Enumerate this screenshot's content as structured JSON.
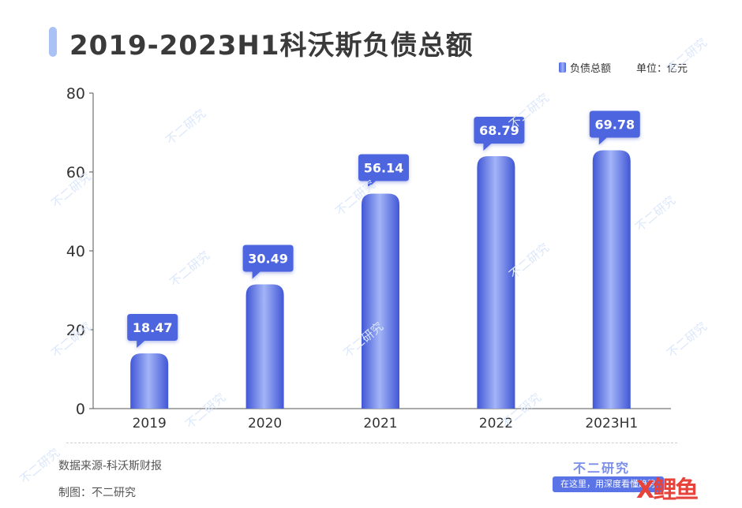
{
  "title": "2019-2023H1科沃斯负债总额",
  "legend": "负债总额",
  "unit": "单位：亿元",
  "source": "数据来源-科沃斯财报",
  "maker": "制图：不二研究",
  "brand": "不二研究",
  "slogan": "在这里，用深度看懂趋势",
  "corner_logo": "X鲤鱼",
  "watermark": "不二研究",
  "colors": {
    "bar": "#5b74e6",
    "callout": "#4d66e0",
    "title_accent": "#a9c1f5"
  },
  "chart_data": {
    "type": "bar",
    "categories": [
      "2019",
      "2020",
      "2021",
      "2022",
      "2023H1"
    ],
    "series": [
      {
        "name": "负债总额",
        "values": [
          18.47,
          30.49,
          56.14,
          68.79,
          69.78
        ]
      }
    ],
    "bar_heights": [
      14,
      31.5,
      54.5,
      64,
      65.5
    ],
    "ylim": [
      0,
      80
    ],
    "yticks": [
      "0",
      "20",
      "40",
      "60",
      "80"
    ],
    "grid": false,
    "legend_position": "top-right"
  }
}
